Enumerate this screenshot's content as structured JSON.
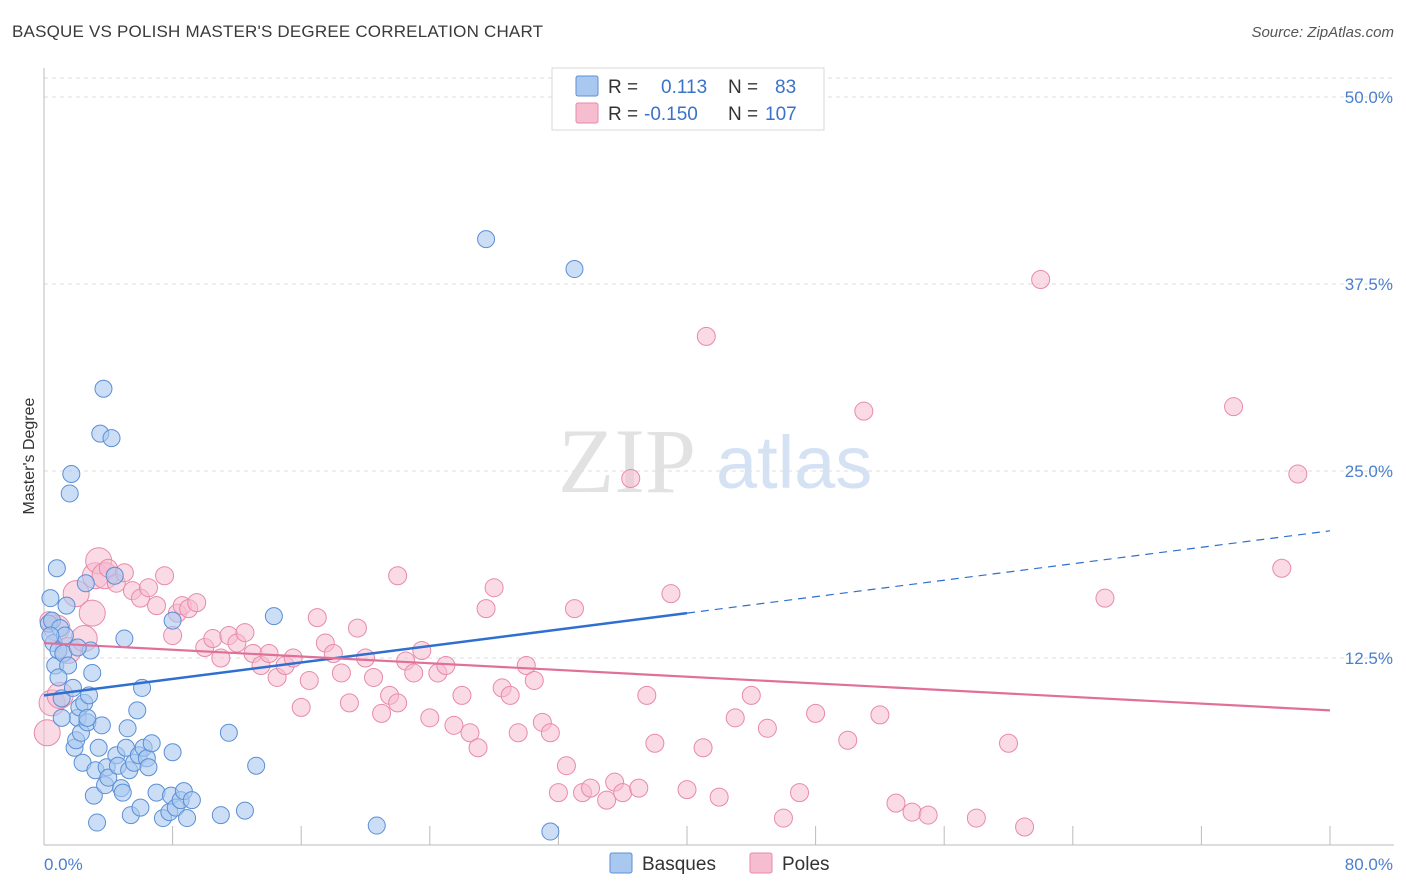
{
  "title": "BASQUE VS POLISH MASTER'S DEGREE CORRELATION CHART",
  "source": "Source: ZipAtlas.com",
  "watermark": {
    "zip": "ZIP",
    "atlas": "atlas"
  },
  "colors": {
    "basque_fill": "#a8c8f0",
    "basque_stroke": "#5b8fd6",
    "basque_line": "#2f6fd0",
    "poles_fill": "#f6bcd0",
    "poles_stroke": "#e88aaa",
    "poles_line": "#e0709a",
    "tick_label": "#4a7fcf",
    "grid": "#dddddd"
  },
  "legend": {
    "r_label": "R =",
    "n_label": "N =",
    "basques": {
      "r": "0.113",
      "n": "83"
    },
    "poles": {
      "r": "-0.150",
      "n": "107"
    }
  },
  "chart_data": {
    "type": "scatter",
    "title": "BASQUE VS POLISH MASTER'S DEGREE CORRELATION CHART",
    "xlabel": "",
    "ylabel": "Master's Degree",
    "xlim": [
      0,
      80
    ],
    "ylim": [
      0,
      50
    ],
    "x_tick_labels": {
      "min": "0.0%",
      "max": "80.0%"
    },
    "y_ticks": [
      12.5,
      25.0,
      37.5,
      50.0
    ],
    "y_tick_labels": [
      "12.5%",
      "25.0%",
      "37.5%",
      "50.0%"
    ],
    "grid": true,
    "legend_position": "top-center",
    "series": [
      {
        "name": "Basques",
        "trend": {
          "x0": 0,
          "y0": 10.0,
          "x1": 40,
          "y1": 15.5,
          "dashed_to_x": 80,
          "dashed_to_y": 21.0
        },
        "points": [
          [
            0.3,
            14.8
          ],
          [
            0.4,
            16.5
          ],
          [
            0.5,
            15.0
          ],
          [
            0.6,
            13.5
          ],
          [
            0.7,
            12.0
          ],
          [
            0.8,
            18.5
          ],
          [
            0.9,
            13.0
          ],
          [
            1.0,
            14.5
          ],
          [
            1.1,
            9.8
          ],
          [
            1.2,
            12.8
          ],
          [
            1.3,
            14.0
          ],
          [
            1.4,
            16.0
          ],
          [
            1.5,
            12.0
          ],
          [
            1.6,
            23.5
          ],
          [
            1.7,
            24.8
          ],
          [
            1.8,
            10.5
          ],
          [
            1.9,
            6.5
          ],
          [
            2.0,
            7.0
          ],
          [
            2.1,
            8.5
          ],
          [
            2.2,
            9.2
          ],
          [
            2.3,
            7.5
          ],
          [
            2.4,
            5.5
          ],
          [
            2.5,
            9.5
          ],
          [
            2.6,
            17.5
          ],
          [
            2.7,
            8.2
          ],
          [
            2.8,
            10.0
          ],
          [
            2.9,
            13.0
          ],
          [
            3.0,
            11.5
          ],
          [
            3.1,
            3.3
          ],
          [
            3.2,
            5.0
          ],
          [
            3.3,
            1.5
          ],
          [
            3.4,
            6.5
          ],
          [
            3.5,
            27.5
          ],
          [
            3.6,
            8.0
          ],
          [
            3.7,
            30.5
          ],
          [
            3.8,
            4.0
          ],
          [
            3.9,
            5.2
          ],
          [
            4.0,
            4.5
          ],
          [
            4.2,
            27.2
          ],
          [
            4.4,
            18.0
          ],
          [
            4.5,
            6.0
          ],
          [
            4.6,
            5.3
          ],
          [
            4.8,
            3.8
          ],
          [
            4.9,
            3.5
          ],
          [
            5.0,
            13.8
          ],
          [
            5.1,
            6.5
          ],
          [
            5.2,
            7.8
          ],
          [
            5.3,
            5.0
          ],
          [
            5.4,
            2.0
          ],
          [
            5.6,
            5.5
          ],
          [
            5.8,
            9.0
          ],
          [
            5.9,
            6.0
          ],
          [
            6.0,
            2.5
          ],
          [
            6.2,
            6.5
          ],
          [
            6.4,
            5.8
          ],
          [
            6.5,
            5.2
          ],
          [
            6.7,
            6.8
          ],
          [
            7.0,
            3.5
          ],
          [
            7.4,
            1.8
          ],
          [
            7.8,
            2.2
          ],
          [
            7.9,
            3.3
          ],
          [
            8.0,
            6.2
          ],
          [
            8.2,
            2.5
          ],
          [
            8.5,
            3.0
          ],
          [
            8.7,
            3.6
          ],
          [
            8.9,
            1.8
          ],
          [
            9.2,
            3.0
          ],
          [
            11.0,
            2.0
          ],
          [
            11.5,
            7.5
          ],
          [
            12.5,
            2.3
          ],
          [
            13.2,
            5.3
          ],
          [
            14.3,
            15.3
          ],
          [
            0.4,
            14.0
          ],
          [
            2.1,
            13.2
          ],
          [
            1.1,
            8.5
          ],
          [
            0.9,
            11.2
          ],
          [
            2.7,
            8.5
          ],
          [
            6.1,
            10.5
          ],
          [
            20.7,
            1.3
          ],
          [
            27.5,
            40.5
          ],
          [
            31.5,
            0.9
          ],
          [
            33.0,
            38.5
          ],
          [
            8.0,
            15.0
          ]
        ]
      },
      {
        "name": "Poles",
        "trend": {
          "x0": 0,
          "y0": 13.5,
          "x1": 80,
          "y1": 9.0
        },
        "points": [
          [
            0.2,
            7.5
          ],
          [
            0.5,
            9.5
          ],
          [
            0.8,
            14.5
          ],
          [
            1.0,
            10.0
          ],
          [
            1.5,
            13.0
          ],
          [
            2.0,
            16.8
          ],
          [
            2.5,
            13.8
          ],
          [
            3.0,
            15.5
          ],
          [
            3.2,
            18.0
          ],
          [
            3.4,
            19.0
          ],
          [
            3.8,
            18.0
          ],
          [
            4.0,
            18.5
          ],
          [
            4.5,
            17.5
          ],
          [
            5.0,
            18.2
          ],
          [
            5.5,
            17.0
          ],
          [
            6.0,
            16.5
          ],
          [
            6.5,
            17.2
          ],
          [
            7.0,
            16.0
          ],
          [
            7.5,
            18.0
          ],
          [
            8.0,
            14.0
          ],
          [
            8.3,
            15.5
          ],
          [
            8.6,
            16.0
          ],
          [
            9.0,
            15.8
          ],
          [
            9.5,
            16.2
          ],
          [
            10.0,
            13.2
          ],
          [
            10.5,
            13.8
          ],
          [
            11.0,
            12.5
          ],
          [
            11.5,
            14.0
          ],
          [
            12.0,
            13.5
          ],
          [
            12.5,
            14.2
          ],
          [
            13.0,
            12.8
          ],
          [
            13.5,
            12.0
          ],
          [
            14.0,
            12.8
          ],
          [
            14.5,
            11.2
          ],
          [
            15.0,
            12.0
          ],
          [
            15.5,
            12.5
          ],
          [
            16.0,
            9.2
          ],
          [
            16.5,
            11.0
          ],
          [
            17.0,
            15.2
          ],
          [
            17.5,
            13.5
          ],
          [
            18.0,
            12.8
          ],
          [
            18.5,
            11.5
          ],
          [
            19.0,
            9.5
          ],
          [
            19.5,
            14.5
          ],
          [
            20.0,
            12.5
          ],
          [
            20.5,
            11.2
          ],
          [
            21.0,
            8.8
          ],
          [
            21.5,
            10.0
          ],
          [
            22.0,
            9.5
          ],
          [
            22.5,
            12.3
          ],
          [
            23.0,
            11.5
          ],
          [
            23.5,
            13.0
          ],
          [
            24.0,
            8.5
          ],
          [
            24.5,
            11.5
          ],
          [
            25.0,
            12.0
          ],
          [
            25.5,
            8.0
          ],
          [
            26.0,
            10.0
          ],
          [
            26.5,
            7.5
          ],
          [
            27.0,
            6.5
          ],
          [
            27.5,
            15.8
          ],
          [
            28.0,
            17.2
          ],
          [
            28.5,
            10.5
          ],
          [
            29.0,
            10.0
          ],
          [
            29.5,
            7.5
          ],
          [
            30.0,
            12.0
          ],
          [
            30.5,
            11.0
          ],
          [
            31.0,
            8.2
          ],
          [
            31.5,
            7.5
          ],
          [
            32.0,
            3.5
          ],
          [
            32.5,
            5.3
          ],
          [
            33.0,
            15.8
          ],
          [
            33.5,
            3.5
          ],
          [
            34.0,
            3.8
          ],
          [
            35.0,
            3.0
          ],
          [
            35.5,
            4.2
          ],
          [
            36.0,
            3.5
          ],
          [
            37.0,
            3.8
          ],
          [
            37.5,
            10.0
          ],
          [
            38.0,
            6.8
          ],
          [
            39.0,
            16.8
          ],
          [
            40.0,
            3.7
          ],
          [
            41.0,
            6.5
          ],
          [
            42.0,
            3.2
          ],
          [
            43.0,
            8.5
          ],
          [
            44.0,
            10.0
          ],
          [
            45.0,
            7.8
          ],
          [
            46.0,
            1.8
          ],
          [
            47.0,
            3.5
          ],
          [
            48.0,
            8.8
          ],
          [
            50.0,
            7.0
          ],
          [
            51.0,
            29.0
          ],
          [
            52.0,
            8.7
          ],
          [
            53.0,
            2.8
          ],
          [
            54.0,
            2.2
          ],
          [
            55.0,
            2.0
          ],
          [
            58.0,
            1.8
          ],
          [
            60.0,
            6.8
          ],
          [
            61.0,
            1.2
          ],
          [
            62.0,
            37.8
          ],
          [
            66.0,
            16.5
          ],
          [
            74.0,
            29.3
          ],
          [
            78.0,
            24.8
          ],
          [
            77.0,
            18.5
          ],
          [
            41.2,
            34.0
          ],
          [
            36.5,
            24.5
          ],
          [
            22.0,
            18.0
          ],
          [
            0.3,
            15.0
          ]
        ]
      }
    ]
  },
  "bottom_legend": [
    "Basques",
    "Poles"
  ]
}
